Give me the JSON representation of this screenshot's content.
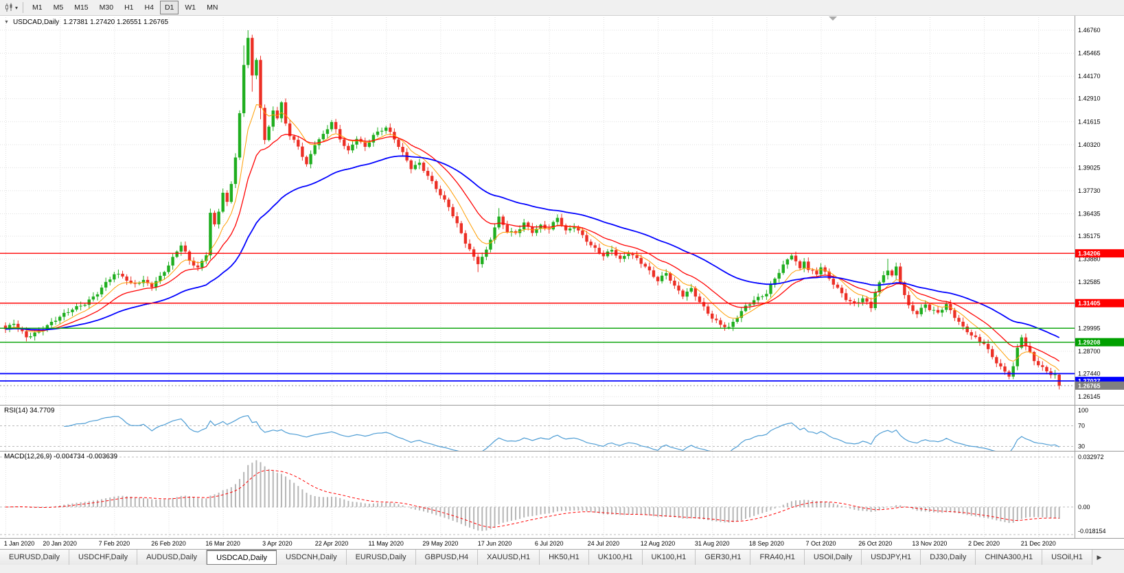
{
  "toolbar": {
    "chart_type_icon": "candlestick-chart-icon",
    "dropdown_caret": "▾",
    "timeframes": [
      "M1",
      "M5",
      "M15",
      "M30",
      "H1",
      "H4",
      "D1",
      "W1",
      "MN"
    ],
    "active_timeframe": "D1"
  },
  "chart": {
    "collapse_glyph": "▼",
    "title": "USDCAD,Daily",
    "ohlc_text": "1.27381 1.27420 1.26551 1.26765"
  },
  "chart_data": {
    "type": "candlestick",
    "symbol": "USDCAD",
    "timeframe": "Daily",
    "days": 253,
    "noise": 0.0011,
    "colors": {
      "up": "#1FAE1F",
      "down": "#EC2F25",
      "grid": "#DFDFDF",
      "separator": "#9A9A9A",
      "current_badge": "#808080"
    },
    "price_ticks": [
      "1.46760",
      "1.45465",
      "1.44170",
      "1.42910",
      "1.41615",
      "1.40320",
      "1.39025",
      "1.37730",
      "1.36435",
      "1.35175",
      "1.33880",
      "1.32585",
      "1.31290",
      "1.29995",
      "1.28700",
      "1.27440",
      "1.26145"
    ],
    "x_labels": [
      "1 Jan 2020",
      "20 Jan 2020",
      "7 Feb 2020",
      "26 Feb 2020",
      "16 Mar 2020",
      "3 Apr 2020",
      "22 Apr 2020",
      "11 May 2020",
      "29 May 2020",
      "17 Jun 2020",
      "6 Jul 2020",
      "24 Jul 2020",
      "12 Aug 2020",
      "31 Aug 2020",
      "18 Sep 2020",
      "7 Oct 2020",
      "26 Oct 2020",
      "13 Nov 2020",
      "2 Dec 2020",
      "21 Dec 2020"
    ],
    "tick_day_indices": [
      0,
      13,
      26,
      39,
      52,
      65,
      78,
      91,
      104,
      117,
      130,
      143,
      156,
      169,
      182,
      195,
      208,
      221,
      234,
      247
    ],
    "hlines": [
      {
        "price": 1.34206,
        "color": "#FF0000",
        "label": "1.34206"
      },
      {
        "price": 1.31405,
        "color": "#FF0000",
        "label": "1.31405"
      },
      {
        "price": 1.29995,
        "color": "#00A000",
        "label": null
      },
      {
        "price": 1.29208,
        "color": "#00A000",
        "label": "1.29208"
      },
      {
        "price": 1.2744,
        "color": "#0000FF",
        "label": null
      },
      {
        "price": 1.27027,
        "color": "#0000FF",
        "label": "1.27027"
      }
    ],
    "current_price": {
      "value": 1.26765,
      "label": "1.26765"
    },
    "last_bar": {
      "o": 1.27381,
      "h": 1.2742,
      "l": 1.26551,
      "c": 1.26765
    },
    "moving_averages": [
      {
        "period": 8,
        "color": "#FF9D00"
      },
      {
        "period": 17,
        "color": "#FF0000"
      },
      {
        "period": 45,
        "color": "#0000FF"
      }
    ],
    "rsi": {
      "label": "RSI(14) 34.7709",
      "period": 14,
      "value": 34.7709,
      "levels": [
        "100",
        "70",
        "30"
      ],
      "level_values": [
        100,
        70,
        30
      ],
      "line_color": "#4C9CD4"
    },
    "macd": {
      "label": "MACD(12,26,9) -0.004734 -0.003639",
      "fast": 12,
      "slow": 26,
      "signal": 9,
      "main_value": -0.004734,
      "signal_value": -0.003639,
      "axis_labels": [
        "0.032972",
        "0.00",
        "-0.018154"
      ],
      "axis_values": [
        0.032972,
        0,
        -0.018154
      ],
      "hist_color": "#B5B5B5",
      "signal_color": "#FF0000"
    },
    "anchors": [
      [
        0,
        1.299
      ],
      [
        2,
        1.3025
      ],
      [
        5,
        1.2952
      ],
      [
        8,
        1.2985
      ],
      [
        11,
        1.303
      ],
      [
        13,
        1.306
      ],
      [
        16,
        1.3105
      ],
      [
        19,
        1.314
      ],
      [
        22,
        1.32
      ],
      [
        24,
        1.3255
      ],
      [
        26,
        1.33
      ],
      [
        28,
        1.329
      ],
      [
        30,
        1.3245
      ],
      [
        33,
        1.327
      ],
      [
        35,
        1.324
      ],
      [
        37,
        1.329
      ],
      [
        39,
        1.335
      ],
      [
        41,
        1.343
      ],
      [
        42,
        1.3465
      ],
      [
        44,
        1.338
      ],
      [
        46,
        1.334
      ],
      [
        48,
        1.342
      ],
      [
        49,
        1.365
      ],
      [
        50,
        1.358
      ],
      [
        51,
        1.366
      ],
      [
        52,
        1.376
      ],
      [
        53,
        1.37
      ],
      [
        54,
        1.381
      ],
      [
        55,
        1.396
      ],
      [
        56,
        1.42
      ],
      [
        57,
        1.448
      ],
      [
        58,
        1.464
      ],
      [
        59,
        1.442
      ],
      [
        60,
        1.451
      ],
      [
        61,
        1.425
      ],
      [
        62,
        1.406
      ],
      [
        63,
        1.413
      ],
      [
        64,
        1.423
      ],
      [
        65,
        1.418
      ],
      [
        66,
        1.426
      ],
      [
        67,
        1.415
      ],
      [
        68,
        1.408
      ],
      [
        70,
        1.402
      ],
      [
        72,
        1.392
      ],
      [
        74,
        1.404
      ],
      [
        76,
        1.409
      ],
      [
        78,
        1.416
      ],
      [
        80,
        1.406
      ],
      [
        82,
        1.399
      ],
      [
        84,
        1.407
      ],
      [
        86,
        1.402
      ],
      [
        88,
        1.409
      ],
      [
        91,
        1.413
      ],
      [
        93,
        1.406
      ],
      [
        95,
        1.398
      ],
      [
        97,
        1.39
      ],
      [
        99,
        1.393
      ],
      [
        101,
        1.386
      ],
      [
        103,
        1.379
      ],
      [
        104,
        1.375
      ],
      [
        106,
        1.368
      ],
      [
        108,
        1.358
      ],
      [
        110,
        1.348
      ],
      [
        112,
        1.34
      ],
      [
        113,
        1.337
      ],
      [
        115,
        1.344
      ],
      [
        117,
        1.357
      ],
      [
        118,
        1.362
      ],
      [
        120,
        1.354
      ],
      [
        122,
        1.353
      ],
      [
        124,
        1.359
      ],
      [
        126,
        1.3545
      ],
      [
        128,
        1.358
      ],
      [
        130,
        1.356
      ],
      [
        132,
        1.362
      ],
      [
        134,
        1.354
      ],
      [
        136,
        1.357
      ],
      [
        138,
        1.352
      ],
      [
        140,
        1.347
      ],
      [
        143,
        1.341
      ],
      [
        145,
        1.344
      ],
      [
        147,
        1.338
      ],
      [
        149,
        1.342
      ],
      [
        151,
        1.339
      ],
      [
        153,
        1.335
      ],
      [
        156,
        1.327
      ],
      [
        158,
        1.331
      ],
      [
        160,
        1.323
      ],
      [
        162,
        1.318
      ],
      [
        164,
        1.322
      ],
      [
        166,
        1.315
      ],
      [
        169,
        1.306
      ],
      [
        171,
        1.302
      ],
      [
        173,
        1.2998
      ],
      [
        175,
        1.306
      ],
      [
        177,
        1.312
      ],
      [
        179,
        1.316
      ],
      [
        182,
        1.32
      ],
      [
        184,
        1.328
      ],
      [
        186,
        1.335
      ],
      [
        188,
        1.341
      ],
      [
        189,
        1.337
      ],
      [
        190,
        1.333
      ],
      [
        191,
        1.338
      ],
      [
        192,
        1.333
      ],
      [
        194,
        1.331
      ],
      [
        195,
        1.335
      ],
      [
        197,
        1.328
      ],
      [
        199,
        1.322
      ],
      [
        201,
        1.316
      ],
      [
        203,
        1.313
      ],
      [
        205,
        1.317
      ],
      [
        207,
        1.312
      ],
      [
        208,
        1.321
      ],
      [
        210,
        1.33
      ],
      [
        211,
        1.333
      ],
      [
        212,
        1.329
      ],
      [
        213,
        1.334
      ],
      [
        214,
        1.326
      ],
      [
        215,
        1.318
      ],
      [
        216,
        1.312
      ],
      [
        218,
        1.308
      ],
      [
        220,
        1.314
      ],
      [
        221,
        1.311
      ],
      [
        223,
        1.309
      ],
      [
        225,
        1.313
      ],
      [
        227,
        1.306
      ],
      [
        229,
        1.3
      ],
      [
        231,
        1.296
      ],
      [
        233,
        1.293
      ],
      [
        234,
        1.292
      ],
      [
        236,
        1.284
      ],
      [
        238,
        1.278
      ],
      [
        239,
        1.275
      ],
      [
        240,
        1.273
      ],
      [
        241,
        1.278
      ],
      [
        242,
        1.288
      ],
      [
        243,
        1.295
      ],
      [
        244,
        1.29
      ],
      [
        245,
        1.286
      ],
      [
        246,
        1.282
      ],
      [
        247,
        1.28
      ],
      [
        248,
        1.278
      ],
      [
        249,
        1.276
      ],
      [
        250,
        1.2745
      ],
      [
        251,
        1.2738
      ],
      [
        252,
        1.26765
      ]
    ],
    "overrides": {
      "57": {
        "h": 1.459
      },
      "58": {
        "h": 1.4676
      },
      "59": {
        "l": 1.433
      },
      "61": {
        "l": 1.4175
      },
      "113": {
        "l": 1.3315
      },
      "118": {
        "h": 1.3675
      },
      "173": {
        "l": 1.2993
      },
      "188": {
        "h": 1.342
      },
      "211": {
        "h": 1.339
      },
      "240": {
        "l": 1.2712
      },
      "243": {
        "h": 1.2963
      },
      "252": {
        "o": 1.27381,
        "h": 1.2742,
        "l": 1.26551,
        "c": 1.26765
      }
    }
  },
  "tabs": {
    "items": [
      "EURUSD,Daily",
      "USDCHF,Daily",
      "AUDUSD,Daily",
      "USDCAD,Daily",
      "USDCNH,Daily",
      "EURUSD,Daily",
      "GBPUSD,H4",
      "XAUUSD,H1",
      "HK50,H1",
      "UK100,H1",
      "UK100,H1",
      "GER30,H1",
      "FRA40,H1",
      "USOil,Daily",
      "USDJPY,H1",
      "DJ30,Daily",
      "CHINA300,H1",
      "USOil,H1"
    ],
    "active_index": 3,
    "scroll_right_glyph": "▶"
  }
}
